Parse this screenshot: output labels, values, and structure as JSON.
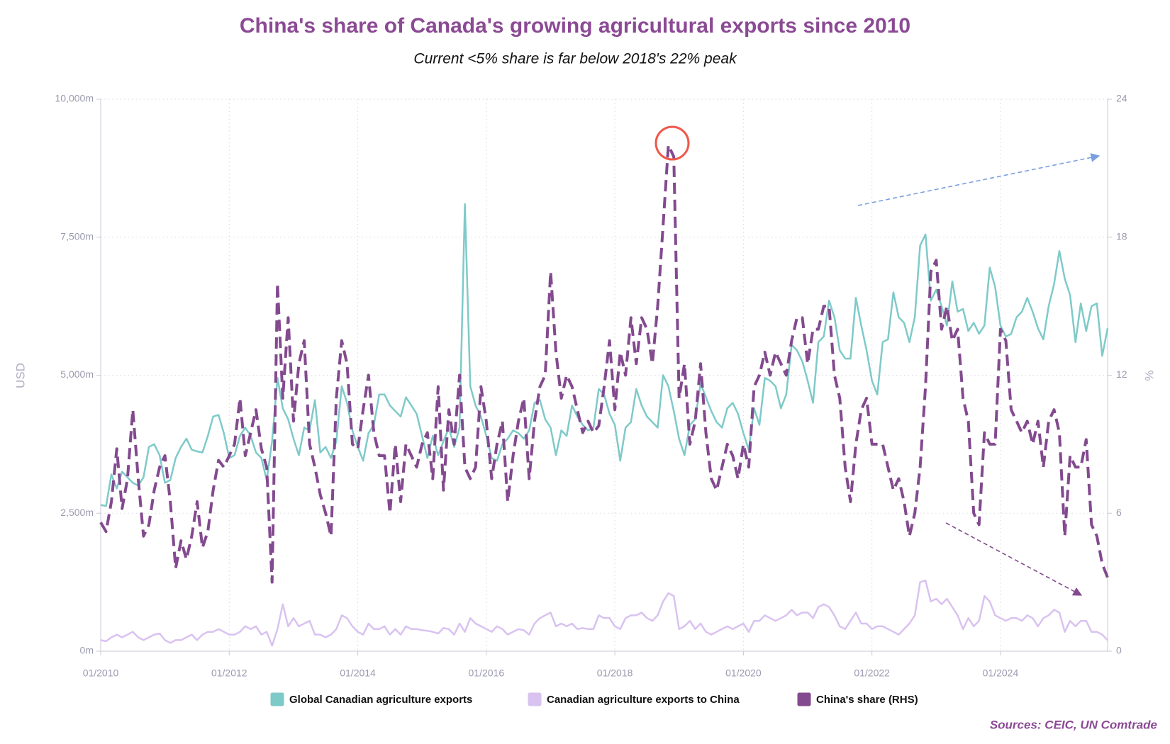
{
  "chart_data": {
    "type": "line",
    "title": "China's share of Canada's growing agricultural exports since 2010",
    "subtitle": "Current <5% share is far below 2018's 22% peak",
    "source": "Sources: CEIC, UN Comtrade",
    "y_label": "USD",
    "y2_label": "%",
    "grid": true,
    "x": [
      "01/2010",
      "02/2010",
      "03/2010",
      "04/2010",
      "05/2010",
      "06/2010",
      "07/2010",
      "08/2010",
      "09/2010",
      "10/2010",
      "11/2010",
      "12/2010",
      "01/2011",
      "02/2011",
      "03/2011",
      "04/2011",
      "05/2011",
      "06/2011",
      "07/2011",
      "08/2011",
      "09/2011",
      "10/2011",
      "11/2011",
      "12/2011",
      "01/2012",
      "02/2012",
      "03/2012",
      "04/2012",
      "05/2012",
      "06/2012",
      "07/2012",
      "08/2012",
      "09/2012",
      "10/2012",
      "11/2012",
      "12/2012",
      "01/2013",
      "02/2013",
      "03/2013",
      "04/2013",
      "05/2013",
      "06/2013",
      "07/2013",
      "08/2013",
      "09/2013",
      "10/2013",
      "11/2013",
      "12/2013",
      "01/2014",
      "02/2014",
      "03/2014",
      "04/2014",
      "05/2014",
      "06/2014",
      "07/2014",
      "08/2014",
      "09/2014",
      "10/2014",
      "11/2014",
      "12/2014",
      "01/2015",
      "02/2015",
      "03/2015",
      "04/2015",
      "05/2015",
      "06/2015",
      "07/2015",
      "08/2015",
      "09/2015",
      "10/2015",
      "11/2015",
      "12/2015",
      "01/2016",
      "02/2016",
      "03/2016",
      "04/2016",
      "05/2016",
      "06/2016",
      "07/2016",
      "08/2016",
      "09/2016",
      "10/2016",
      "11/2016",
      "12/2016",
      "01/2017",
      "02/2017",
      "03/2017",
      "04/2017",
      "05/2017",
      "06/2017",
      "07/2017",
      "08/2017",
      "09/2017",
      "10/2017",
      "11/2017",
      "12/2017",
      "01/2018",
      "02/2018",
      "03/2018",
      "04/2018",
      "05/2018",
      "06/2018",
      "07/2018",
      "08/2018",
      "09/2018",
      "10/2018",
      "11/2018",
      "12/2018",
      "01/2019",
      "02/2019",
      "03/2019",
      "04/2019",
      "05/2019",
      "06/2019",
      "07/2019",
      "08/2019",
      "09/2019",
      "10/2019",
      "11/2019",
      "12/2019",
      "01/2020",
      "02/2020",
      "03/2020",
      "04/2020",
      "05/2020",
      "06/2020",
      "07/2020",
      "08/2020",
      "09/2020",
      "10/2020",
      "11/2020",
      "12/2020",
      "01/2021",
      "02/2021",
      "03/2021",
      "04/2021",
      "05/2021",
      "06/2021",
      "07/2021",
      "08/2021",
      "09/2021",
      "10/2021",
      "11/2021",
      "12/2021",
      "01/2022",
      "02/2022",
      "03/2022",
      "04/2022",
      "05/2022",
      "06/2022",
      "07/2022",
      "08/2022",
      "09/2022",
      "10/2022",
      "11/2022",
      "12/2022",
      "01/2023",
      "02/2023",
      "03/2023",
      "04/2023",
      "05/2023",
      "06/2023",
      "07/2023",
      "08/2023",
      "09/2023",
      "10/2023",
      "11/2023",
      "12/2023",
      "01/2024",
      "02/2024",
      "03/2024",
      "04/2024",
      "05/2024",
      "06/2024",
      "07/2024",
      "08/2024",
      "09/2024",
      "10/2024",
      "11/2024",
      "12/2024",
      "01/2025",
      "02/2025",
      "03/2025",
      "04/2025",
      "05/2025",
      "06/2025",
      "07/2025",
      "08/2025",
      "09/2025"
    ],
    "xticks": [
      "01/2010",
      "01/2012",
      "01/2014",
      "01/2016",
      "01/2018",
      "01/2020",
      "01/2022",
      "01/2024"
    ],
    "ylim": [
      0,
      10000
    ],
    "yticks": [
      {
        "value": 0,
        "label": "0m"
      },
      {
        "value": 2500,
        "label": "2,500m"
      },
      {
        "value": 5000,
        "label": "5,000m"
      },
      {
        "value": 7500,
        "label": "7,500m"
      },
      {
        "value": 10000,
        "label": "10,000m"
      }
    ],
    "y2lim": [
      0,
      24
    ],
    "y2ticks": [
      0,
      6,
      12,
      18,
      24
    ],
    "series": [
      {
        "name": "Global Canadian agriculture exports",
        "color": "#7ecac9",
        "line_style": "solid",
        "values": [
          2650,
          2630,
          3200,
          2950,
          3250,
          3150,
          3050,
          3000,
          3150,
          3700,
          3750,
          3550,
          3050,
          3100,
          3500,
          3700,
          3850,
          3650,
          3620,
          3600,
          3900,
          4250,
          4280,
          3950,
          3500,
          3550,
          3900,
          4050,
          3900,
          3600,
          3500,
          3100,
          3800,
          4950,
          4400,
          4200,
          3850,
          3550,
          4050,
          4000,
          4550,
          3600,
          3700,
          3500,
          3800,
          4800,
          4500,
          4000,
          3700,
          3450,
          3950,
          4100,
          4650,
          4650,
          4450,
          4350,
          4250,
          4600,
          4450,
          4300,
          3900,
          3500,
          3900,
          3550,
          3800,
          4050,
          3700,
          4050,
          8100,
          4800,
          4450,
          4250,
          3900,
          3500,
          3450,
          3750,
          3850,
          4000,
          3950,
          3850,
          4000,
          4500,
          4550,
          4200,
          4050,
          3550,
          4000,
          3900,
          4450,
          4250,
          4100,
          4000,
          4050,
          4750,
          4650,
          4300,
          4100,
          3450,
          4050,
          4150,
          4750,
          4450,
          4250,
          4150,
          4050,
          5000,
          4800,
          4350,
          3850,
          3550,
          4100,
          4200,
          4850,
          4600,
          4350,
          4150,
          4050,
          4400,
          4500,
          4300,
          3950,
          3650,
          4400,
          4100,
          4950,
          4900,
          4800,
          4400,
          4650,
          5550,
          5450,
          5250,
          4900,
          4500,
          5600,
          5700,
          6350,
          6050,
          5450,
          5300,
          5300,
          6400,
          5900,
          5450,
          4900,
          4650,
          5600,
          5650,
          6500,
          6050,
          5950,
          5600,
          6050,
          7350,
          7550,
          6350,
          6550,
          6250,
          5900,
          6700,
          6150,
          6200,
          5800,
          5950,
          5750,
          5900,
          6950,
          6600,
          5900,
          5700,
          5750,
          6050,
          6150,
          6400,
          6150,
          5850,
          5650,
          6250,
          6650,
          7250,
          6750,
          6450,
          5600,
          6300,
          5800,
          6250,
          6300,
          5350,
          5850
        ]
      },
      {
        "name": "Canadian agriculture exports to China",
        "color": "#d9c2f0",
        "line_style": "solid",
        "values": [
          200,
          180,
          250,
          300,
          250,
          300,
          350,
          250,
          200,
          250,
          300,
          320,
          200,
          150,
          200,
          200,
          250,
          300,
          200,
          300,
          350,
          350,
          400,
          350,
          300,
          300,
          350,
          450,
          400,
          450,
          300,
          350,
          100,
          400,
          850,
          450,
          600,
          450,
          500,
          550,
          300,
          300,
          250,
          300,
          400,
          650,
          600,
          450,
          350,
          300,
          500,
          400,
          400,
          450,
          300,
          400,
          300,
          450,
          400,
          400,
          380,
          370,
          350,
          320,
          420,
          400,
          300,
          500,
          350,
          600,
          500,
          450,
          400,
          350,
          450,
          400,
          300,
          350,
          400,
          380,
          300,
          500,
          600,
          650,
          700,
          450,
          500,
          450,
          500,
          400,
          420,
          400,
          400,
          650,
          600,
          600,
          450,
          400,
          600,
          650,
          650,
          700,
          600,
          550,
          650,
          900,
          1050,
          1000,
          400,
          450,
          550,
          400,
          500,
          350,
          300,
          350,
          400,
          450,
          400,
          450,
          500,
          350,
          550,
          550,
          650,
          600,
          550,
          600,
          650,
          750,
          650,
          700,
          700,
          600,
          800,
          850,
          800,
          650,
          450,
          400,
          550,
          700,
          500,
          500,
          400,
          450,
          450,
          400,
          350,
          300,
          400,
          500,
          650,
          1250,
          1280,
          900,
          950,
          850,
          950,
          800,
          650,
          400,
          600,
          450,
          550,
          1000,
          900,
          650,
          600,
          550,
          600,
          600,
          550,
          650,
          600,
          450,
          600,
          650,
          750,
          700,
          350,
          550,
          450,
          550,
          550,
          350,
          350,
          300,
          200
        ]
      },
      {
        "name": "China's share (RHS)",
        "color": "#834a8f",
        "line_style": "dashed",
        "axis": "y2",
        "values": [
          5.6,
          5.2,
          6.5,
          8.8,
          6.2,
          7.5,
          10.5,
          7.5,
          5,
          5.5,
          7,
          8,
          8.5,
          6.5,
          3.6,
          4.8,
          4,
          5,
          6.5,
          4.5,
          5.2,
          7,
          8.3,
          8,
          8.5,
          9,
          11,
          8.5,
          9.5,
          10.5,
          8.8,
          8,
          3,
          16,
          11,
          14.5,
          10,
          12.5,
          13.5,
          9,
          8,
          6.8,
          6,
          5,
          11,
          13.5,
          12.5,
          9,
          8.8,
          10.5,
          12,
          9.5,
          8.5,
          8.5,
          6,
          9,
          6.5,
          9,
          8.5,
          8,
          9,
          9.5,
          7.5,
          11.5,
          7,
          10.5,
          9,
          12,
          8,
          7.5,
          8,
          11.5,
          10,
          7.5,
          9,
          10,
          6.5,
          8.5,
          10,
          11,
          7.5,
          10,
          11.5,
          12,
          16.5,
          13,
          11,
          12,
          11.5,
          10.5,
          9.5,
          10,
          9.5,
          9.8,
          11.5,
          13.5,
          10.5,
          13,
          12,
          14.5,
          12.5,
          14.5,
          14,
          12.5,
          15,
          18.5,
          22,
          21.5,
          11,
          12.5,
          9,
          10,
          12.5,
          9.5,
          7.5,
          7,
          8,
          9,
          8.5,
          7.5,
          9,
          8,
          11.5,
          12,
          13,
          12,
          13,
          12.5,
          12,
          13.5,
          14.5,
          14.5,
          12.5,
          14,
          14,
          15,
          15,
          12,
          11,
          8,
          6.5,
          9,
          10.5,
          11,
          9,
          9,
          9,
          8,
          7,
          7.5,
          6.5,
          5,
          6,
          8,
          11.5,
          16.5,
          17,
          14,
          15,
          13.5,
          14,
          11,
          10,
          6,
          5.5,
          9.5,
          9,
          9,
          14,
          13.5,
          10.5,
          10,
          9.5,
          10,
          9,
          10,
          8,
          10,
          10.5,
          9.5,
          5,
          8.5,
          8,
          8,
          9.2,
          5.5,
          5,
          3.8,
          3.2
        ]
      }
    ]
  }
}
